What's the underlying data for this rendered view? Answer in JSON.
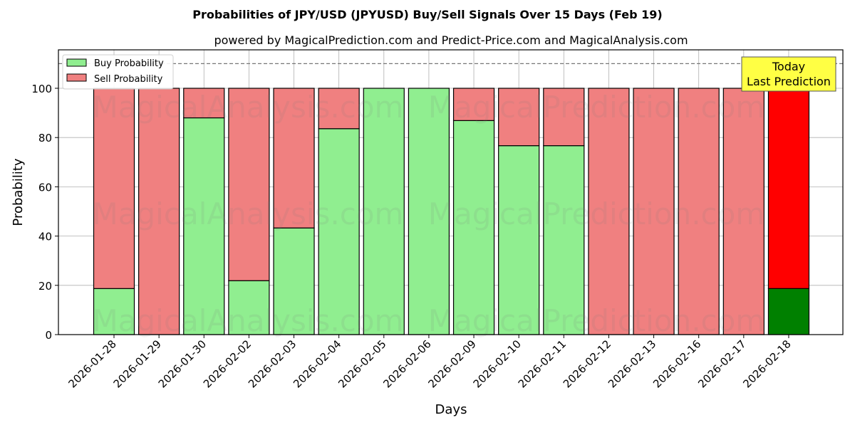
{
  "chart_data": {
    "type": "bar",
    "stacked": true,
    "title": "Probabilities of JPY/USD (JPYUSD) Buy/Sell Signals Over 15 Days (Feb 19)",
    "subtitle": "powered by MagicalPrediction.com and Predict-Price.com and MagicalAnalysis.com",
    "xlabel": "Days",
    "ylabel": "Probability",
    "ylim": [
      0,
      115
    ],
    "yticks": [
      0,
      20,
      40,
      60,
      80,
      100
    ],
    "reference_line": 110,
    "grid": true,
    "legend_position": "top-left",
    "categories": [
      "2026-01-28",
      "2026-01-29",
      "2026-01-30",
      "2026-02-02",
      "2026-02-03",
      "2026-02-04",
      "2026-02-05",
      "2026-02-06",
      "2026-02-09",
      "2026-02-10",
      "2026-02-11",
      "2026-02-12",
      "2026-02-13",
      "2026-02-16",
      "2026-02-17",
      "2026-02-18"
    ],
    "series": [
      {
        "name": "Buy Probability",
        "color": "#90ee90",
        "values": [
          18.7,
          0,
          88,
          21.9,
          43.3,
          83.6,
          100,
          100,
          86.9,
          76.7,
          76.7,
          0,
          0,
          0,
          0,
          18.7
        ]
      },
      {
        "name": "Sell Probability",
        "color": "#f08080",
        "values": [
          81.3,
          100,
          12,
          78.1,
          56.7,
          16.4,
          0,
          0,
          13.1,
          23.3,
          23.3,
          100,
          100,
          100,
          100,
          81.3
        ]
      }
    ],
    "highlight": {
      "index": 15,
      "buy_color": "#008000",
      "sell_color": "#ff0000"
    },
    "annotation": {
      "line1": "Today",
      "line2": "Last Prediction",
      "color": "#ffff44"
    },
    "watermarks": [
      "MagicalAnalysis.com",
      "MagicalPrediction.com"
    ]
  }
}
